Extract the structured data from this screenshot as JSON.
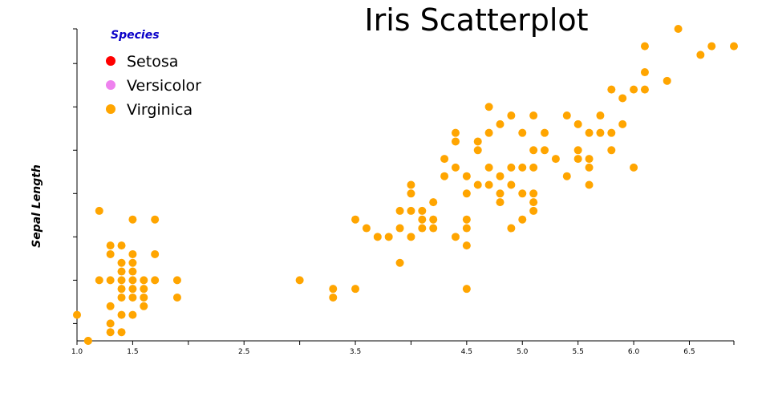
{
  "chart_data": {
    "type": "scatter",
    "title": "Iris Scatterplot",
    "xlabel": "",
    "ylabel": "Sepal Length",
    "xlim": [
      1.0,
      6.9
    ],
    "ylim": [
      4.3,
      7.9
    ],
    "x_ticks": [
      "1.0",
      "1.5",
      "",
      "2.5",
      "",
      "3.5",
      "",
      "4.5",
      "5.0",
      "5.5",
      "6.0",
      "6.5",
      ""
    ],
    "x_tick_values": [
      1.0,
      1.5,
      2.0,
      2.5,
      3.0,
      3.5,
      4.0,
      4.5,
      5.0,
      5.5,
      6.0,
      6.5,
      6.9
    ],
    "y_tick_values": [
      4.5,
      5.0,
      5.5,
      6.0,
      6.5,
      7.0,
      7.5,
      7.9
    ],
    "legend": {
      "title": "Species",
      "position": "top-left",
      "entries": [
        {
          "name": "Setosa",
          "color": "#ff0000"
        },
        {
          "name": "Versicolor",
          "color": "#ee82ee"
        },
        {
          "name": "Virginica",
          "color": "#ffa500"
        }
      ]
    },
    "point_color": "#ffa500",
    "series": [
      {
        "name": "Virginica",
        "points": [
          [
            1.0,
            4.6
          ],
          [
            1.1,
            4.3
          ],
          [
            1.2,
            5.8
          ],
          [
            1.3,
            5.4
          ],
          [
            1.3,
            5.3
          ],
          [
            1.3,
            5.0
          ],
          [
            1.3,
            4.7
          ],
          [
            1.3,
            4.5
          ],
          [
            1.3,
            4.4
          ],
          [
            1.4,
            5.4
          ],
          [
            1.4,
            5.2
          ],
          [
            1.4,
            5.1
          ],
          [
            1.4,
            5.0
          ],
          [
            1.4,
            4.9
          ],
          [
            1.4,
            4.8
          ],
          [
            1.4,
            4.6
          ],
          [
            1.4,
            4.4
          ],
          [
            1.5,
            5.7
          ],
          [
            1.5,
            5.3
          ],
          [
            1.5,
            5.2
          ],
          [
            1.5,
            5.1
          ],
          [
            1.5,
            5.0
          ],
          [
            1.5,
            4.9
          ],
          [
            1.5,
            4.8
          ],
          [
            1.5,
            4.6
          ],
          [
            1.6,
            5.0
          ],
          [
            1.6,
            4.8
          ],
          [
            1.6,
            4.7
          ],
          [
            1.6,
            4.9
          ],
          [
            1.7,
            5.7
          ],
          [
            1.7,
            5.3
          ],
          [
            1.7,
            5.0
          ],
          [
            1.9,
            5.0
          ],
          [
            1.9,
            4.8
          ],
          [
            1.2,
            5.0
          ],
          [
            1.1,
            4.3
          ],
          [
            3.0,
            5.0
          ],
          [
            3.3,
            4.9
          ],
          [
            3.3,
            4.8
          ],
          [
            3.5,
            4.9
          ],
          [
            3.5,
            5.7
          ],
          [
            3.6,
            5.6
          ],
          [
            3.7,
            5.5
          ],
          [
            3.8,
            5.5
          ],
          [
            3.9,
            5.6
          ],
          [
            3.9,
            5.8
          ],
          [
            3.9,
            5.2
          ],
          [
            4.0,
            5.5
          ],
          [
            4.0,
            5.8
          ],
          [
            4.0,
            6.0
          ],
          [
            4.0,
            6.1
          ],
          [
            4.1,
            5.8
          ],
          [
            4.1,
            5.7
          ],
          [
            4.1,
            5.6
          ],
          [
            4.2,
            5.6
          ],
          [
            4.2,
            5.7
          ],
          [
            4.2,
            5.9
          ],
          [
            4.3,
            6.2
          ],
          [
            4.3,
            6.4
          ],
          [
            4.4,
            6.3
          ],
          [
            4.4,
            6.6
          ],
          [
            4.4,
            6.7
          ],
          [
            4.4,
            5.5
          ],
          [
            4.5,
            6.2
          ],
          [
            4.5,
            6.0
          ],
          [
            4.5,
            5.7
          ],
          [
            4.5,
            5.6
          ],
          [
            4.5,
            5.4
          ],
          [
            4.5,
            4.9
          ],
          [
            4.6,
            6.1
          ],
          [
            4.6,
            6.5
          ],
          [
            4.6,
            6.6
          ],
          [
            4.7,
            6.1
          ],
          [
            4.7,
            6.3
          ],
          [
            4.7,
            6.7
          ],
          [
            4.7,
            7.0
          ],
          [
            4.8,
            6.2
          ],
          [
            4.8,
            6.0
          ],
          [
            4.8,
            5.9
          ],
          [
            4.8,
            6.8
          ],
          [
            4.9,
            6.3
          ],
          [
            4.9,
            6.1
          ],
          [
            4.9,
            6.9
          ],
          [
            4.9,
            5.6
          ],
          [
            5.0,
            6.7
          ],
          [
            5.0,
            6.3
          ],
          [
            5.0,
            6.0
          ],
          [
            5.0,
            5.7
          ],
          [
            5.1,
            6.9
          ],
          [
            5.1,
            6.5
          ],
          [
            5.1,
            6.3
          ],
          [
            5.1,
            6.0
          ],
          [
            5.1,
            5.9
          ],
          [
            5.1,
            5.8
          ],
          [
            5.2,
            6.7
          ],
          [
            5.2,
            6.5
          ],
          [
            5.3,
            6.4
          ],
          [
            5.4,
            6.9
          ],
          [
            5.4,
            6.2
          ],
          [
            5.5,
            6.8
          ],
          [
            5.5,
            6.5
          ],
          [
            5.5,
            6.4
          ],
          [
            5.6,
            6.7
          ],
          [
            5.6,
            6.4
          ],
          [
            5.6,
            6.3
          ],
          [
            5.6,
            6.1
          ],
          [
            5.7,
            6.9
          ],
          [
            5.7,
            6.7
          ],
          [
            5.8,
            7.2
          ],
          [
            5.8,
            6.7
          ],
          [
            5.8,
            6.5
          ],
          [
            5.9,
            7.1
          ],
          [
            5.9,
            6.8
          ],
          [
            6.0,
            7.2
          ],
          [
            6.0,
            6.3
          ],
          [
            6.1,
            7.7
          ],
          [
            6.1,
            7.4
          ],
          [
            6.1,
            7.2
          ],
          [
            6.3,
            7.3
          ],
          [
            6.4,
            7.9
          ],
          [
            6.6,
            7.6
          ],
          [
            6.7,
            7.7
          ],
          [
            6.9,
            7.7
          ]
        ]
      }
    ]
  }
}
